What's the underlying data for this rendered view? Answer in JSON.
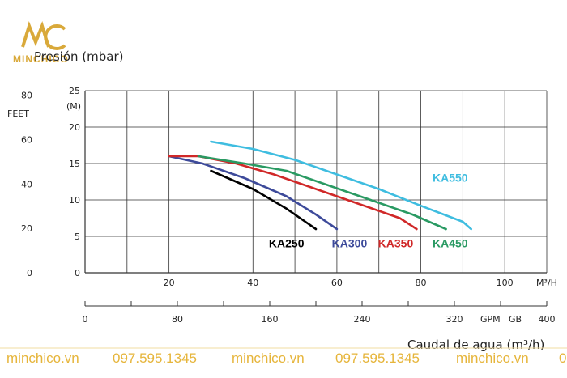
{
  "brand": {
    "logo_text": "MINCHICO",
    "color": "#e6b53b"
  },
  "footer": {
    "items": [
      "minchico.vn",
      "097.595.1345",
      "minchico.vn",
      "097.595.1345",
      "minchico.vn",
      "0"
    ]
  },
  "chart_data": {
    "type": "line",
    "title": "",
    "ylabel": "Presión (mbar)",
    "xlabel": "Caudal de agua (m³/h)",
    "y_left_unit": "FEET",
    "y_right_unit": "(M)",
    "x_unit": "M³/H",
    "ylim": [
      0,
      25
    ],
    "xlim": [
      0,
      110
    ],
    "y_ticks_m": [
      "25",
      "20",
      "15",
      "10",
      "5",
      "0"
    ],
    "y_ticks_feet": [
      "80",
      "60",
      "40",
      "20",
      "0"
    ],
    "x_ticks_m3h": [
      "20",
      "40",
      "60",
      "80",
      "100"
    ],
    "x2_ticks": [
      "0",
      "80",
      "160",
      "240",
      "320",
      "400"
    ],
    "x2_unit_a": "GPM",
    "x2_unit_b": "GB",
    "series": [
      {
        "name": "KA250",
        "color": "#000000",
        "x": [
          30,
          40,
          48,
          55
        ],
        "y": [
          14,
          11.5,
          8.8,
          6
        ]
      },
      {
        "name": "KA300",
        "color": "#3d4a9a",
        "x": [
          20,
          28,
          38,
          48,
          55,
          60
        ],
        "y": [
          16,
          15,
          13,
          10.5,
          8,
          6
        ]
      },
      {
        "name": "KA350",
        "color": "#d02828",
        "x": [
          20,
          27,
          36,
          45,
          55,
          65,
          75,
          79
        ],
        "y": [
          16,
          16,
          15,
          13.5,
          11.5,
          9.5,
          7.5,
          6
        ]
      },
      {
        "name": "KA450",
        "color": "#2a9a63",
        "x": [
          27,
          38,
          48,
          58,
          68,
          78,
          86
        ],
        "y": [
          16,
          15,
          14,
          12,
          10,
          8,
          6
        ]
      },
      {
        "name": "KA550",
        "color": "#3fbde0",
        "x": [
          30,
          40,
          50,
          60,
          70,
          80,
          90,
          92
        ],
        "y": [
          18,
          17,
          15.5,
          13.5,
          11.5,
          9.2,
          7,
          6
        ]
      }
    ]
  }
}
